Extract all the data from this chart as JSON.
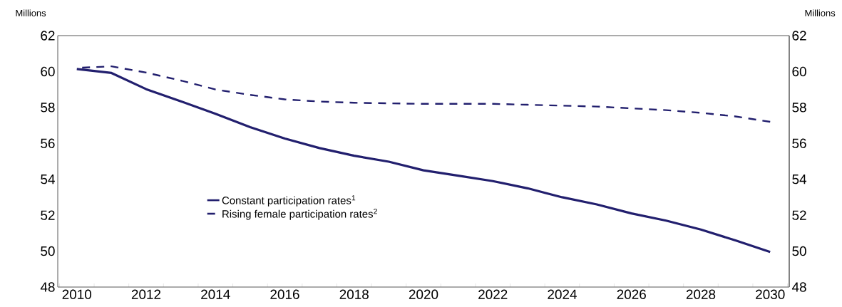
{
  "chart_data": {
    "type": "line",
    "ylabel": "Millions",
    "y2label": "Millions",
    "categories": [
      "2010",
      null,
      "2012",
      null,
      "2014",
      null,
      "2016",
      null,
      "2018",
      null,
      "2020",
      null,
      "2022",
      null,
      "2024",
      null,
      "2026",
      null,
      "2028",
      null,
      "2030"
    ],
    "series": [
      {
        "name": "Constant participation rates$^{1}$",
        "color": "#221f6e",
        "line_style": "solid",
        "values": [
          60.14,
          59.92,
          59.02,
          58.34,
          57.65,
          56.9,
          56.27,
          55.74,
          55.31,
          54.98,
          54.5,
          54.2,
          53.9,
          53.5,
          53.0,
          52.6,
          52.1,
          51.7,
          51.2,
          50.6,
          49.95
        ]
      },
      {
        "name": "Rising female participation rates$^{2}$",
        "color": "#221f6e",
        "line_style": "dashed",
        "values": [
          60.2,
          60.29,
          59.94,
          59.5,
          59.0,
          58.7,
          58.45,
          58.33,
          58.26,
          58.23,
          58.2,
          58.2,
          58.2,
          58.15,
          58.1,
          58.05,
          57.95,
          57.85,
          57.7,
          57.5,
          57.2
        ]
      }
    ],
    "ylim": [
      48,
      62
    ],
    "yticks": [
      48,
      50,
      52,
      54,
      56,
      58,
      60,
      62
    ],
    "y2lim": [
      48,
      62
    ],
    "y2ticks": [
      48,
      50,
      52,
      54,
      56,
      58,
      60,
      62
    ],
    "legend": "bottom left",
    "grid": false,
    "marker": "none"
  }
}
